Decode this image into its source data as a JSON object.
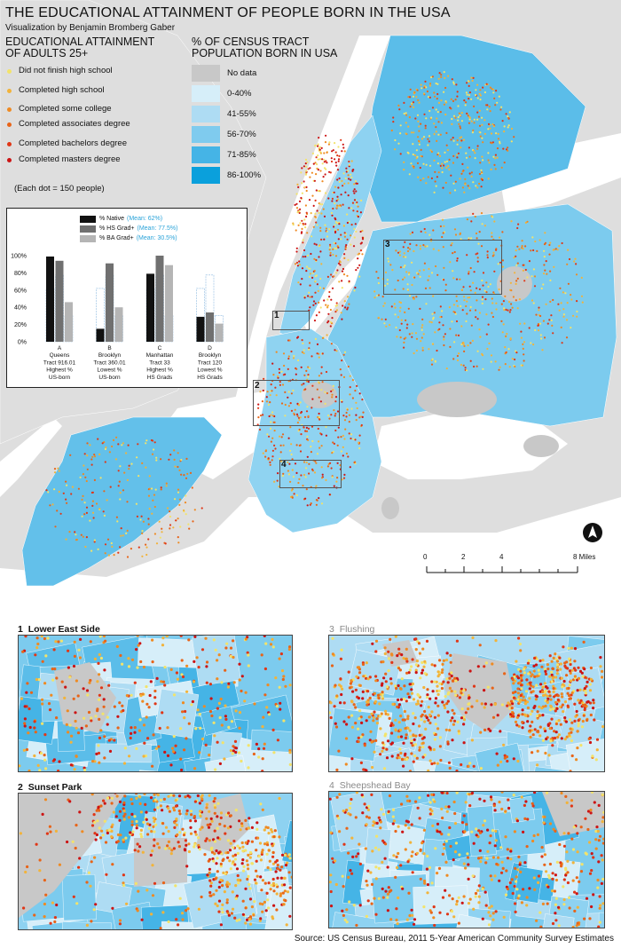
{
  "header": {
    "title": "THE EDUCATIONAL ATTAINMENT OF PEOPLE BORN IN THE USA",
    "subtitle": "Visualization by Benjamin Bromberg Gaber"
  },
  "legend_education": {
    "heading_line1": "EDUCATIONAL ATTAINMENT",
    "heading_line2": "OF ADULTS 25+",
    "items": [
      {
        "label": "Did not finish high school",
        "color": "#f3e36a"
      },
      {
        "label": "Completed high school",
        "color": "#f2b33a"
      },
      {
        "label": "Completed some college",
        "color": "#ef8a22"
      },
      {
        "label": "Completed associates degree",
        "color": "#e86418"
      },
      {
        "label": "Completed bachelors degree",
        "color": "#e03616"
      },
      {
        "label": "Completed masters degree",
        "color": "#cc1414"
      }
    ],
    "note": "(Each dot = 150 people)"
  },
  "legend_tract": {
    "heading_line1": "% OF CENSUS TRACT",
    "heading_line2": "POPULATION BORN IN USA",
    "items": [
      {
        "label": "No data",
        "color": "#c8c8c8"
      },
      {
        "label": "0-40%",
        "color": "#d6eef9"
      },
      {
        "label": "41-55%",
        "color": "#aedcf3"
      },
      {
        "label": "56-70%",
        "color": "#7fcbee"
      },
      {
        "label": "71-85%",
        "color": "#45b4e6"
      },
      {
        "label": "86-100%",
        "color": "#0aa0dc"
      }
    ]
  },
  "chart_data": {
    "type": "bar",
    "categories": [
      "A\nQueens\nTract 916.01\nHighest %\nUS-born",
      "B\nBrooklyn\nTract 360.01\nLowest %\nUS-born",
      "C\nManhattan\nTract 33\nHighest %\nHS Grads",
      "D\nBrooklyn\nTract 120\nLowest %\nHS Grads"
    ],
    "category_lines": [
      [
        "A",
        "Queens",
        "Tract 916.01",
        "Highest %",
        "US-born"
      ],
      [
        "B",
        "Brooklyn",
        "Tract 360.01",
        "Lowest %",
        "US-born"
      ],
      [
        "C",
        "Manhattan",
        "Tract 33",
        "Highest %",
        "HS Grads"
      ],
      [
        "D",
        "Brooklyn",
        "Tract 120",
        "Lowest %",
        "HS Grads"
      ]
    ],
    "series": [
      {
        "name": "% Native",
        "mean_label": "(Mean: 62%)",
        "mean": 62,
        "color": "#111111",
        "values": [
          99,
          15,
          79,
          29
        ]
      },
      {
        "name": "% HS Grad+",
        "mean_label": "(Mean: 77.5%)",
        "mean": 77.5,
        "color": "#707070",
        "values": [
          94,
          91,
          100,
          34
        ]
      },
      {
        "name": "% BA Grad+",
        "mean_label": "(Mean: 30.5%)",
        "mean": 30.5,
        "color": "#b5b5b5",
        "values": [
          46,
          40,
          89,
          21
        ]
      }
    ],
    "ylim": [
      0,
      100
    ],
    "yticks": [
      "0%",
      "20%",
      "40%",
      "60%",
      "80%",
      "100%"
    ]
  },
  "map": {
    "scale_ticks": [
      "0",
      "2",
      "4",
      "8 Miles"
    ],
    "area_labels": [
      "1",
      "2",
      "3",
      "4"
    ],
    "colors": {
      "water": "#ffffff",
      "land_out": "#dedede",
      "no_data": "#c8c8c8"
    }
  },
  "insets": [
    {
      "number": "1",
      "name": "Lower East Side"
    },
    {
      "number": "2",
      "name": "Sunset Park"
    },
    {
      "number": "3",
      "name": "Flushing"
    },
    {
      "number": "4",
      "name": "Sheepshead Bay"
    }
  ],
  "source": "Source: US Census Bureau, 2011 5-Year American Community Survey Estimates"
}
